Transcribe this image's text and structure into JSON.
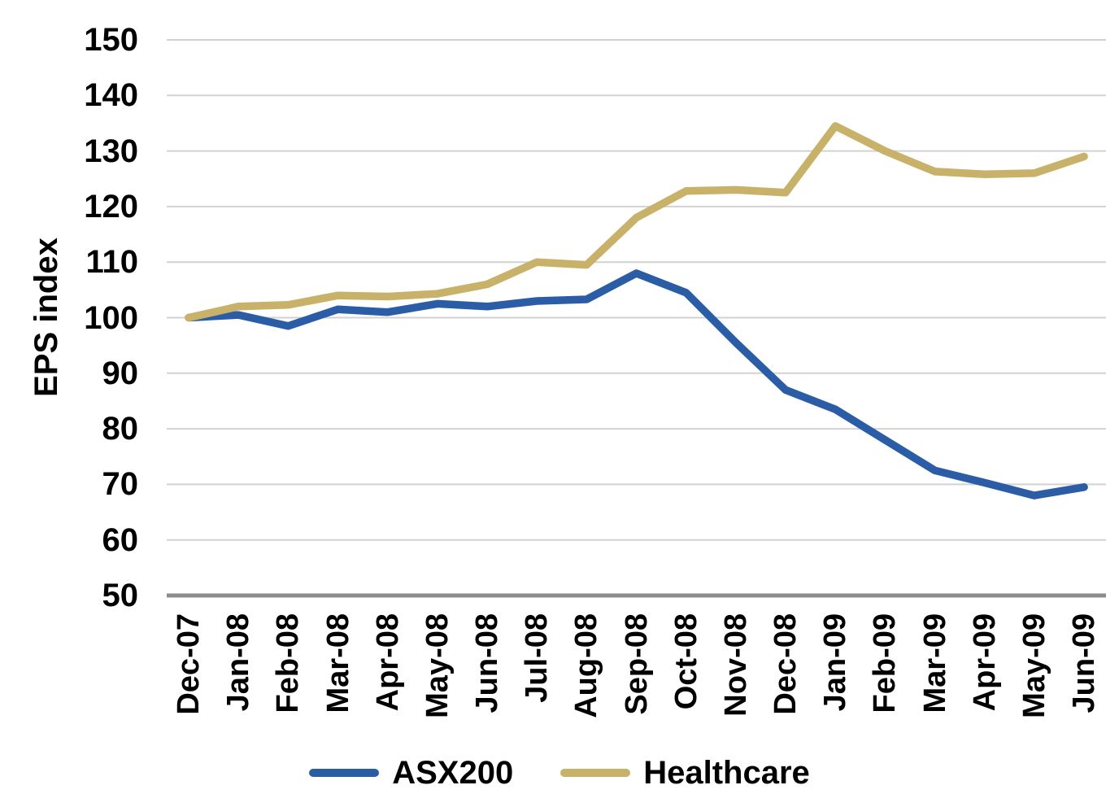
{
  "chart_data": {
    "type": "line",
    "title": "",
    "ylabel": "EPS index",
    "xlabel": "",
    "categories": [
      "Dec-07",
      "Jan-08",
      "Feb-08",
      "Mar-08",
      "Apr-08",
      "May-08",
      "Jun-08",
      "Jul-08",
      "Aug-08",
      "Sep-08",
      "Oct-08",
      "Nov-08",
      "Dec-08",
      "Jan-09",
      "Feb-09",
      "Mar-09",
      "Apr-09",
      "May-09",
      "Jun-09"
    ],
    "series": [
      {
        "name": "ASX200",
        "color": "#2B5DA7",
        "values": [
          100,
          100.5,
          98.5,
          101.5,
          101,
          102.5,
          102,
          103,
          103.3,
          108,
          104.5,
          95.5,
          87,
          83.5,
          78,
          72.5,
          70.3,
          68,
          69.5
        ]
      },
      {
        "name": "Healthcare",
        "color": "#C8B26A",
        "values": [
          100,
          102,
          102.3,
          104,
          103.8,
          104.3,
          106,
          110,
          109.5,
          118,
          122.8,
          123,
          122.5,
          134.5,
          130,
          126.3,
          125.8,
          126,
          129
        ]
      }
    ],
    "ylim": [
      50,
      150
    ],
    "ytick_step": 10,
    "yticks": [
      50,
      60,
      70,
      80,
      90,
      100,
      110,
      120,
      130,
      140,
      150
    ],
    "grid": "horizontal",
    "gridline_color": "#D2D2D2",
    "axis_line_color": "#8C8C8C",
    "text_color": "#000000",
    "legend_position": "bottom"
  }
}
